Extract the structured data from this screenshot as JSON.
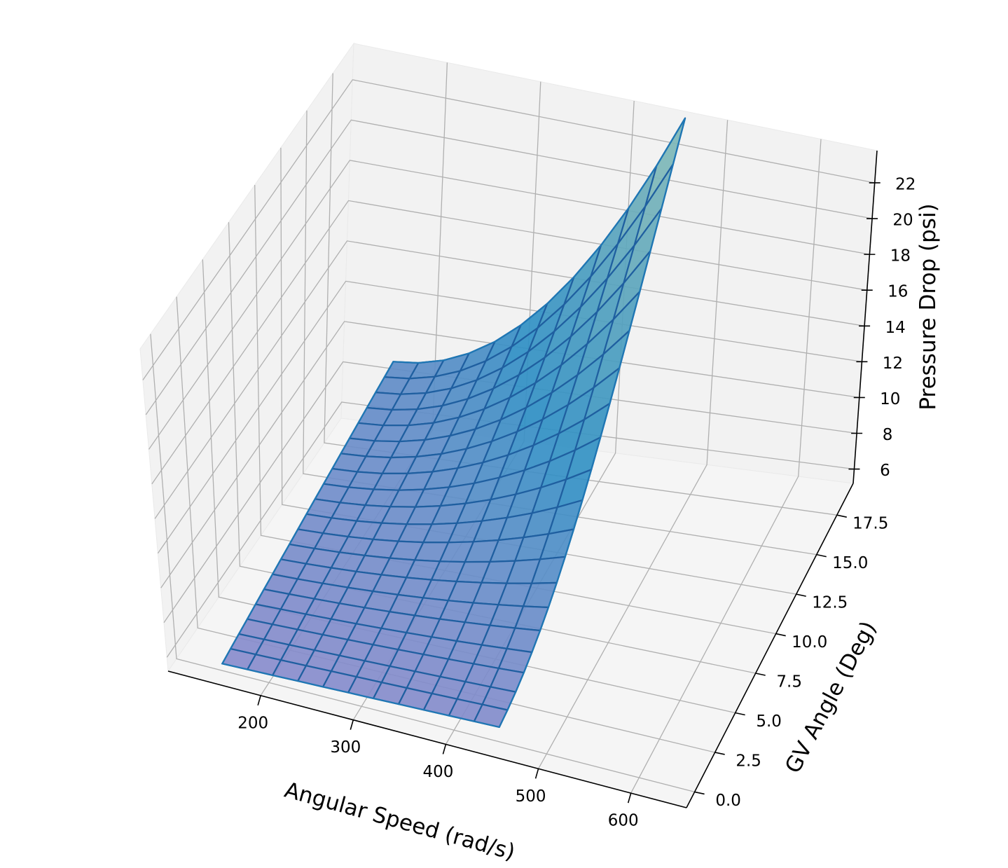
{
  "chart_data": {
    "type": "surface3d",
    "title": "",
    "xlabel": "Angular Speed (rad/s)",
    "ylabel": "GV Angle (Deg)",
    "zlabel": "Pressure Drop (psi)",
    "xlim": [
      100,
      660
    ],
    "ylim": [
      -1,
      19.5
    ],
    "zlim": [
      5.2,
      23.8
    ],
    "x_ticks": [
      "200",
      "300",
      "400",
      "500",
      "600"
    ],
    "y_ticks": [
      "0.0",
      "2.5",
      "5.0",
      "7.5",
      "10.0",
      "12.5",
      "15.0",
      "17.5"
    ],
    "z_ticks": [
      "6",
      "8",
      "10",
      "12",
      "14",
      "16",
      "18",
      "20",
      "22"
    ],
    "x_tick_values": [
      200,
      300,
      400,
      500,
      600
    ],
    "y_tick_values": [
      0,
      2.5,
      5,
      7.5,
      10,
      12.5,
      15,
      17.5
    ],
    "z_tick_values": [
      6,
      8,
      10,
      12,
      14,
      16,
      18,
      20,
      22
    ],
    "surface": {
      "x_range": [
        150,
        450
      ],
      "y_range": [
        0,
        20
      ],
      "x_count": 12,
      "y_count": 21,
      "corner_values": {
        "x150_y0": 5.6,
        "x450_y0": 6.0,
        "x150_y20": 8.0,
        "x450_y20": 23.0
      }
    },
    "grid": true,
    "colors": {
      "surface_low": "#8c8ccc",
      "surface_high": "#8ebfb6",
      "surface_mid": "#2f8fc4",
      "edge": "#1f5fa0",
      "outline": "#1f77b4",
      "pane": "#f2f2f2",
      "gridline": "#b0b0b0"
    }
  }
}
